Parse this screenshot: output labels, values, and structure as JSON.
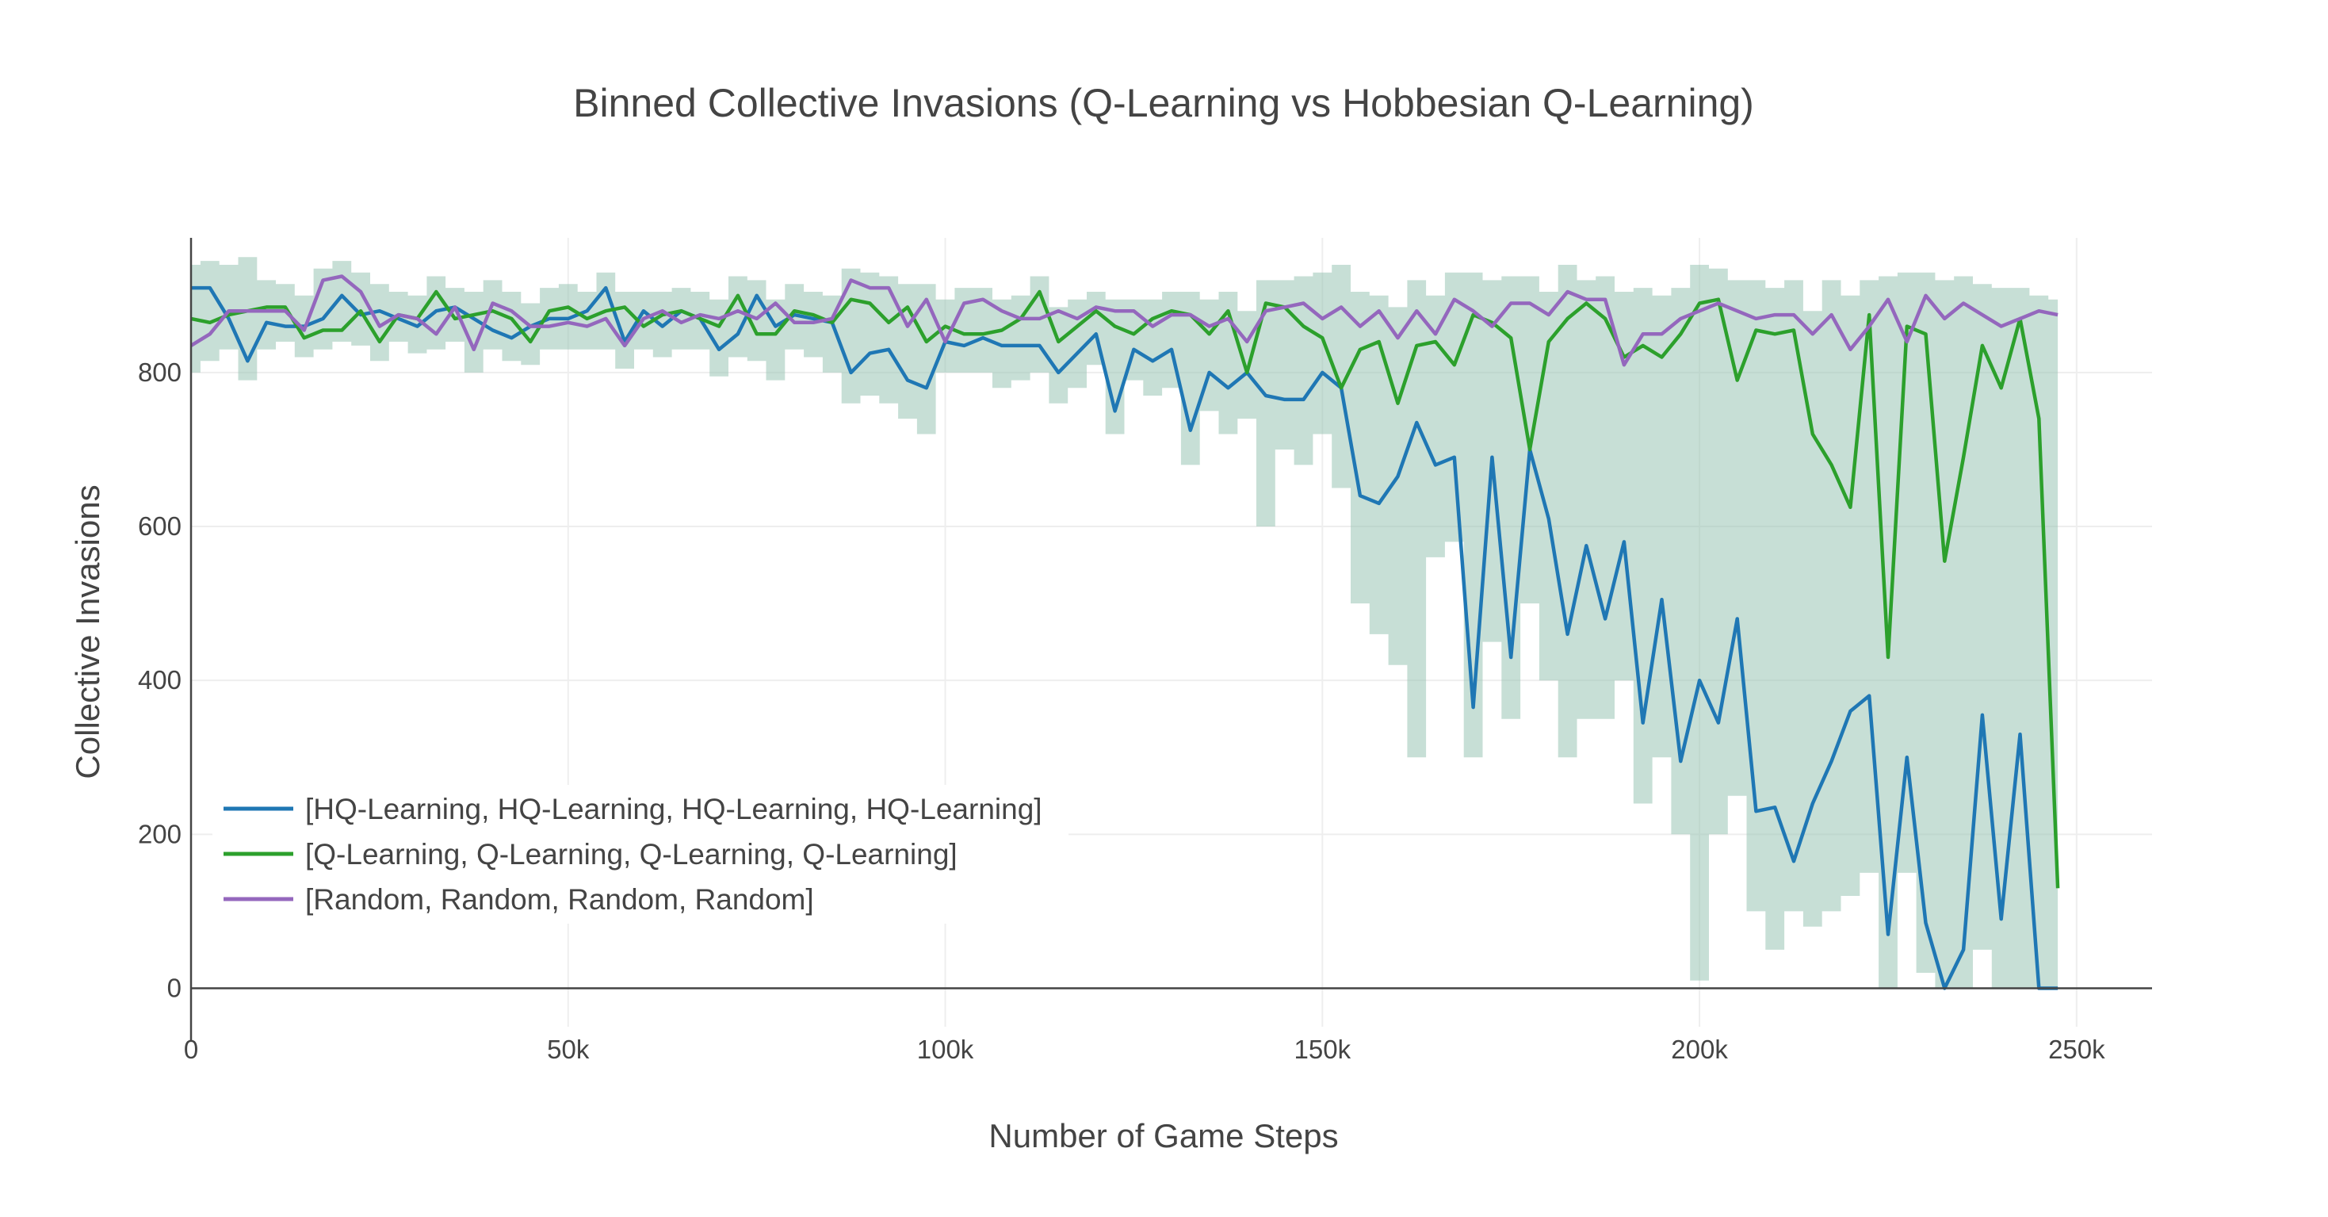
{
  "chart_data": {
    "type": "line",
    "title": "Binned Collective Invasions (Q-Learning vs Hobbesian Q-Learning)",
    "xlabel": "Number of Game Steps",
    "ylabel": "Collective Invasions",
    "xlim": [
      0,
      260000
    ],
    "ylim": [
      -50,
      975
    ],
    "grid": true,
    "legend_position": "bottom-left",
    "x_ticks": [
      {
        "value": 0,
        "label": "0"
      },
      {
        "value": 50000,
        "label": "50k"
      },
      {
        "value": 100000,
        "label": "100k"
      },
      {
        "value": 150000,
        "label": "150k"
      },
      {
        "value": 200000,
        "label": "200k"
      },
      {
        "value": 250000,
        "label": "250k"
      }
    ],
    "y_ticks": [
      {
        "value": 0,
        "label": "0"
      },
      {
        "value": 200,
        "label": "200"
      },
      {
        "value": 400,
        "label": "400"
      },
      {
        "value": 600,
        "label": "600"
      },
      {
        "value": 800,
        "label": "800"
      }
    ],
    "band_color": "#8fbfae",
    "series": [
      {
        "name": "[HQ-Learning, HQ-Learning, HQ-Learning, HQ-Learning]",
        "color": "#1f77b4",
        "x": [
          0,
          2500,
          5000,
          7500,
          10000,
          12500,
          15000,
          17500,
          20000,
          22500,
          25000,
          27500,
          30000,
          32500,
          35000,
          37500,
          40000,
          42500,
          45000,
          47500,
          50000,
          52500,
          55000,
          57500,
          60000,
          62500,
          65000,
          67500,
          70000,
          72500,
          75000,
          77500,
          80000,
          82500,
          85000,
          87500,
          90000,
          92500,
          95000,
          97500,
          100000,
          102500,
          105000,
          107500,
          110000,
          112500,
          115000,
          117500,
          120000,
          122500,
          125000,
          127500,
          130000,
          132500,
          135000,
          137500,
          140000,
          142500,
          145000,
          147500,
          150000,
          152500,
          155000,
          157500,
          160000,
          162500,
          165000,
          167500,
          170000,
          172500,
          175000,
          177500,
          180000,
          182500,
          185000,
          187500,
          190000,
          192500,
          195000,
          197500,
          200000,
          202500,
          205000,
          207500,
          210000,
          212500,
          215000,
          217500,
          220000,
          222500,
          225000,
          227500,
          230000,
          232500,
          235000,
          237500,
          240000,
          242500,
          245000,
          247500
        ],
        "y": [
          910,
          910,
          870,
          815,
          865,
          860,
          860,
          870,
          900,
          875,
          880,
          870,
          860,
          880,
          885,
          870,
          855,
          845,
          860,
          870,
          870,
          880,
          910,
          840,
          880,
          860,
          880,
          870,
          830,
          850,
          900,
          860,
          875,
          870,
          865,
          800,
          825,
          830,
          790,
          780,
          840,
          835,
          845,
          835,
          835,
          835,
          800,
          825,
          850,
          750,
          830,
          815,
          830,
          725,
          800,
          780,
          800,
          770,
          765,
          765,
          800,
          780,
          640,
          630,
          665,
          735,
          680,
          690,
          365,
          690,
          430,
          700,
          610,
          460,
          575,
          480,
          580,
          345,
          505,
          295,
          400,
          345,
          480,
          230,
          235,
          165,
          240,
          295,
          360,
          380,
          70,
          300,
          85,
          0,
          50,
          355,
          90,
          330,
          0,
          0
        ]
      },
      {
        "name": "[Q-Learning, Q-Learning, Q-Learning, Q-Learning]",
        "color": "#2ca02c",
        "x": [
          0,
          2500,
          5000,
          7500,
          10000,
          12500,
          15000,
          17500,
          20000,
          22500,
          25000,
          27500,
          30000,
          32500,
          35000,
          37500,
          40000,
          42500,
          45000,
          47500,
          50000,
          52500,
          55000,
          57500,
          60000,
          62500,
          65000,
          67500,
          70000,
          72500,
          75000,
          77500,
          80000,
          82500,
          85000,
          87500,
          90000,
          92500,
          95000,
          97500,
          100000,
          102500,
          105000,
          107500,
          110000,
          112500,
          115000,
          117500,
          120000,
          122500,
          125000,
          127500,
          130000,
          132500,
          135000,
          137500,
          140000,
          142500,
          145000,
          147500,
          150000,
          152500,
          155000,
          157500,
          160000,
          162500,
          165000,
          167500,
          170000,
          172500,
          175000,
          177500,
          180000,
          182500,
          185000,
          187500,
          190000,
          192500,
          195000,
          197500,
          200000,
          202500,
          205000,
          207500,
          210000,
          212500,
          215000,
          217500,
          220000,
          222500,
          225000,
          227500,
          230000,
          232500,
          235000,
          237500,
          240000,
          242500,
          245000,
          247500
        ],
        "y": [
          870,
          865,
          875,
          880,
          885,
          885,
          845,
          855,
          855,
          880,
          840,
          875,
          870,
          905,
          870,
          875,
          880,
          870,
          840,
          880,
          885,
          870,
          880,
          885,
          860,
          875,
          880,
          870,
          860,
          900,
          850,
          850,
          880,
          875,
          865,
          895,
          890,
          865,
          885,
          840,
          860,
          850,
          850,
          855,
          870,
          905,
          840,
          860,
          880,
          860,
          850,
          870,
          880,
          875,
          850,
          880,
          800,
          890,
          885,
          860,
          845,
          780,
          830,
          840,
          760,
          835,
          840,
          810,
          875,
          865,
          845,
          700,
          840,
          870,
          890,
          870,
          820,
          835,
          820,
          850,
          890,
          895,
          790,
          855,
          850,
          855,
          720,
          680,
          625,
          875,
          430,
          860,
          850,
          555,
          690,
          835,
          780,
          870,
          740,
          130
        ]
      },
      {
        "name": "[Random, Random, Random, Random]",
        "color": "#9467bd",
        "x": [
          0,
          2500,
          5000,
          7500,
          10000,
          12500,
          15000,
          17500,
          20000,
          22500,
          25000,
          27500,
          30000,
          32500,
          35000,
          37500,
          40000,
          42500,
          45000,
          47500,
          50000,
          52500,
          55000,
          57500,
          60000,
          62500,
          65000,
          67500,
          70000,
          72500,
          75000,
          77500,
          80000,
          82500,
          85000,
          87500,
          90000,
          92500,
          95000,
          97500,
          100000,
          102500,
          105000,
          107500,
          110000,
          112500,
          115000,
          117500,
          120000,
          122500,
          125000,
          127500,
          130000,
          132500,
          135000,
          137500,
          140000,
          142500,
          145000,
          147500,
          150000,
          152500,
          155000,
          157500,
          160000,
          162500,
          165000,
          167500,
          170000,
          172500,
          175000,
          177500,
          180000,
          182500,
          185000,
          187500,
          190000,
          192500,
          195000,
          197500,
          200000,
          202500,
          205000,
          207500,
          210000,
          212500,
          215000,
          217500,
          220000,
          222500,
          225000,
          227500,
          230000,
          232500,
          235000,
          237500,
          240000,
          242500,
          245000,
          247500
        ],
        "y": [
          835,
          850,
          880,
          880,
          880,
          880,
          855,
          920,
          925,
          905,
          860,
          875,
          870,
          850,
          885,
          830,
          890,
          880,
          860,
          860,
          865,
          860,
          870,
          835,
          870,
          880,
          865,
          875,
          870,
          880,
          870,
          890,
          865,
          865,
          870,
          920,
          910,
          910,
          860,
          895,
          840,
          890,
          895,
          880,
          870,
          870,
          880,
          870,
          885,
          880,
          880,
          860,
          875,
          875,
          860,
          870,
          840,
          880,
          885,
          890,
          870,
          885,
          860,
          880,
          845,
          880,
          850,
          895,
          880,
          860,
          890,
          890,
          875,
          905,
          895,
          895,
          810,
          850,
          850,
          870,
          880,
          890,
          880,
          870,
          875,
          875,
          850,
          875,
          830,
          860,
          895,
          840,
          900,
          870,
          890,
          875,
          860,
          870,
          880,
          875
        ]
      }
    ],
    "band": {
      "x": [
        0,
        2500,
        5000,
        7500,
        10000,
        12500,
        15000,
        17500,
        20000,
        22500,
        25000,
        27500,
        30000,
        32500,
        35000,
        37500,
        40000,
        42500,
        45000,
        47500,
        50000,
        52500,
        55000,
        57500,
        60000,
        62500,
        65000,
        67500,
        70000,
        72500,
        75000,
        77500,
        80000,
        82500,
        85000,
        87500,
        90000,
        92500,
        95000,
        97500,
        100000,
        102500,
        105000,
        107500,
        110000,
        112500,
        115000,
        117500,
        120000,
        122500,
        125000,
        127500,
        130000,
        132500,
        135000,
        137500,
        140000,
        142500,
        145000,
        147500,
        150000,
        152500,
        155000,
        157500,
        160000,
        162500,
        165000,
        167500,
        170000,
        172500,
        175000,
        177500,
        180000,
        182500,
        185000,
        187500,
        190000,
        192500,
        195000,
        197500,
        200000,
        202500,
        205000,
        207500,
        210000,
        212500,
        215000,
        217500,
        220000,
        222500,
        225000,
        227500,
        230000,
        232500,
        235000,
        237500,
        240000,
        242500,
        245000,
        247500
      ],
      "upper": [
        940,
        945,
        940,
        950,
        920,
        915,
        900,
        935,
        945,
        930,
        915,
        905,
        900,
        925,
        910,
        905,
        920,
        905,
        890,
        910,
        915,
        905,
        930,
        905,
        905,
        905,
        910,
        905,
        895,
        925,
        920,
        895,
        915,
        905,
        900,
        935,
        930,
        925,
        915,
        915,
        895,
        910,
        910,
        895,
        900,
        925,
        885,
        895,
        905,
        895,
        895,
        895,
        905,
        905,
        895,
        905,
        880,
        920,
        920,
        925,
        930,
        940,
        905,
        900,
        885,
        920,
        900,
        930,
        930,
        920,
        925,
        925,
        905,
        940,
        920,
        925,
        905,
        910,
        900,
        910,
        940,
        935,
        920,
        920,
        910,
        920,
        880,
        920,
        900,
        920,
        925,
        930,
        930,
        920,
        925,
        915,
        910,
        910,
        900,
        895
      ],
      "lower": [
        800,
        815,
        830,
        790,
        830,
        840,
        820,
        830,
        840,
        835,
        815,
        840,
        825,
        830,
        840,
        800,
        830,
        815,
        810,
        830,
        830,
        830,
        830,
        805,
        830,
        820,
        830,
        830,
        795,
        820,
        815,
        790,
        830,
        820,
        800,
        760,
        770,
        760,
        740,
        720,
        800,
        800,
        800,
        780,
        790,
        800,
        760,
        780,
        810,
        720,
        790,
        770,
        780,
        680,
        750,
        720,
        740,
        600,
        700,
        680,
        720,
        650,
        500,
        460,
        420,
        300,
        560,
        580,
        300,
        450,
        350,
        500,
        400,
        300,
        350,
        350,
        400,
        240,
        300,
        200,
        10,
        200,
        250,
        100,
        50,
        100,
        80,
        100,
        120,
        150,
        0,
        150,
        20,
        0,
        0,
        50,
        0,
        0,
        0,
        0
      ]
    }
  }
}
